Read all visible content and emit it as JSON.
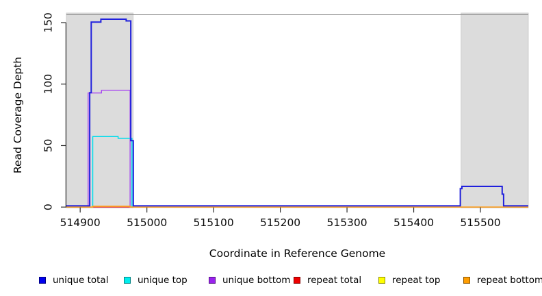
{
  "chart_data": {
    "type": "line",
    "title": "",
    "xlabel": "Coordinate in Reference Genome",
    "ylabel": "Read Coverage Depth",
    "xlim": [
      514879.3,
      515571.8
    ],
    "ylim": [
      0,
      156
    ],
    "x_ticks": [
      514900,
      515000,
      515100,
      515200,
      515300,
      515400,
      515500
    ],
    "y_ticks": [
      0,
      50,
      100,
      150
    ],
    "grid": false,
    "legend_position": "bottom",
    "shaded_regions": [
      {
        "name": "left-gray-band",
        "x0": 514879.3,
        "x1": 514979.4,
        "color": "#dcdcdc"
      },
      {
        "name": "right-gray-band",
        "x0": 515471.0,
        "x1": 515571.8,
        "color": "#dcdcdc"
      }
    ],
    "series": [
      {
        "name": "repeat top",
        "color": "#ffff00",
        "lw": 1.2,
        "points": [
          [
            514879.3,
            0
          ],
          [
            515571.8,
            0
          ]
        ]
      },
      {
        "name": "unique bottom",
        "color": "#a849ef",
        "lw": 1.4,
        "points": [
          [
            514879.3,
            0
          ],
          [
            514911.9,
            0
          ],
          [
            514911.9,
            92.8
          ],
          [
            514931.9,
            92.8
          ],
          [
            514931.9,
            95
          ],
          [
            514974.8,
            95
          ],
          [
            514974.8,
            0
          ],
          [
            515571.8,
            0
          ]
        ]
      },
      {
        "name": "unique top",
        "color": "#00dcec",
        "lw": 1.5,
        "points": [
          [
            514879.3,
            0
          ],
          [
            514918.8,
            0
          ],
          [
            514918.8,
            57.4
          ],
          [
            514956.9,
            57.4
          ],
          [
            514956.9,
            55.9
          ],
          [
            514977.6,
            55.9
          ],
          [
            514977.6,
            0
          ],
          [
            515571.8,
            0
          ]
        ]
      },
      {
        "name": "repeat total",
        "color": "#ee3355",
        "lw": 1.4,
        "points": [
          [
            514879.3,
            0
          ],
          [
            515571.8,
            0
          ]
        ]
      },
      {
        "name": "repeat bottom",
        "color": "#ff9d1a",
        "lw": 1.6,
        "points": [
          [
            514879.3,
            0
          ],
          [
            514918.8,
            0
          ],
          [
            514918.8,
            0.6
          ],
          [
            514974.8,
            0.6
          ],
          [
            514974.8,
            0
          ],
          [
            515571.8,
            0
          ]
        ]
      },
      {
        "name": "unique total",
        "color": "#2020dd",
        "lw": 2.0,
        "points": [
          [
            514879.3,
            1
          ],
          [
            514914.3,
            1
          ],
          [
            514914.3,
            93
          ],
          [
            514916.5,
            93
          ],
          [
            514916.5,
            150.4
          ],
          [
            514931,
            150.4
          ],
          [
            514931,
            152.8
          ],
          [
            514969,
            152.8
          ],
          [
            514969,
            151.4
          ],
          [
            514975.8,
            151.4
          ],
          [
            514975.8,
            54
          ],
          [
            514979.6,
            54
          ],
          [
            514979.6,
            1
          ],
          [
            515469.8,
            1
          ],
          [
            515469.8,
            15
          ],
          [
            515472.3,
            15
          ],
          [
            515472.3,
            16.8
          ],
          [
            515532.6,
            16.8
          ],
          [
            515532.6,
            10.5
          ],
          [
            515534.8,
            10.5
          ],
          [
            515534.8,
            1
          ],
          [
            515571.8,
            1
          ]
        ]
      }
    ],
    "legend": [
      {
        "label": "unique total",
        "color": "#0000ee"
      },
      {
        "label": "unique top",
        "color": "#00eeee"
      },
      {
        "label": "unique bottom",
        "color": "#9a22ee"
      },
      {
        "label": "repeat total",
        "color": "#ee0000"
      },
      {
        "label": "repeat top",
        "color": "#ffff00"
      },
      {
        "label": "repeat bottom",
        "color": "#ff9d00"
      }
    ]
  }
}
